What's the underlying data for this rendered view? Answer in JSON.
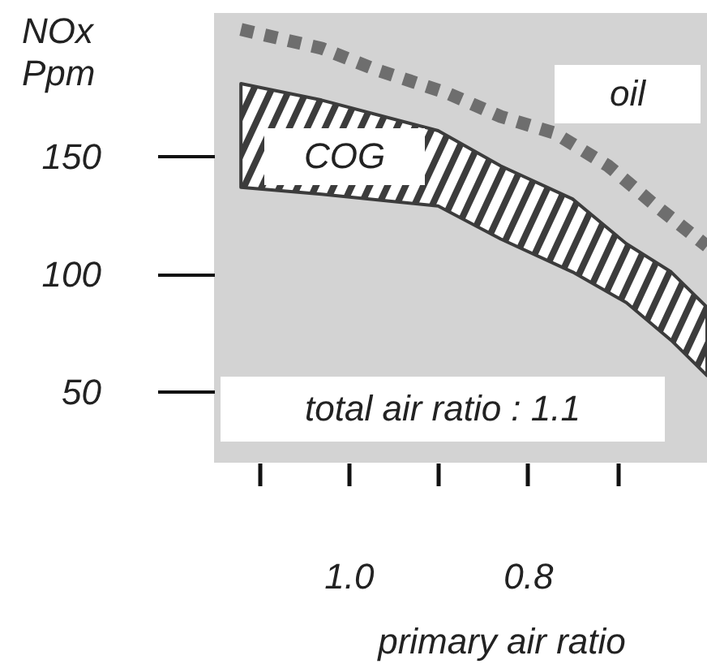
{
  "chart_data": {
    "type": "line",
    "ylabel": "NOx\nPpm",
    "xlabel": "primary air ratio",
    "annotations": [
      "total air ratio : 1.1"
    ],
    "xlim": [
      1.15,
      0.6
    ],
    "xticks": [
      {
        "value": 1.1,
        "label": null
      },
      {
        "value": 1.0,
        "label": "1.0"
      },
      {
        "value": 0.9,
        "label": null
      },
      0.8,
      {
        "value": 0.7,
        "label": null
      }
    ],
    "ylim": [
      20,
      211
    ],
    "yticks": [
      50,
      100,
      150
    ],
    "series": [
      {
        "name": "COG",
        "type": "area",
        "color": "#3c3c3c",
        "x": [
          1.12,
          1.03,
          0.9,
          0.83,
          0.75,
          0.69,
          0.64,
          0.6
        ],
        "values": [
          null,
          null,
          null,
          null,
          null,
          null,
          null,
          null
        ],
        "upper": [
          181,
          174,
          161,
          146,
          132,
          113,
          101,
          86
        ],
        "lower": [
          137,
          134,
          129,
          115,
          101,
          88,
          72,
          57
        ]
      },
      {
        "name": "oil",
        "color": "#6e6e6e",
        "line_style": "dotted",
        "x": [
          1.12,
          1.03,
          0.97,
          0.89,
          0.83,
          0.77,
          0.71,
          0.66,
          0.6
        ],
        "values": [
          204,
          196,
          187,
          177,
          167,
          160,
          146,
          130,
          112
        ]
      }
    ]
  }
}
